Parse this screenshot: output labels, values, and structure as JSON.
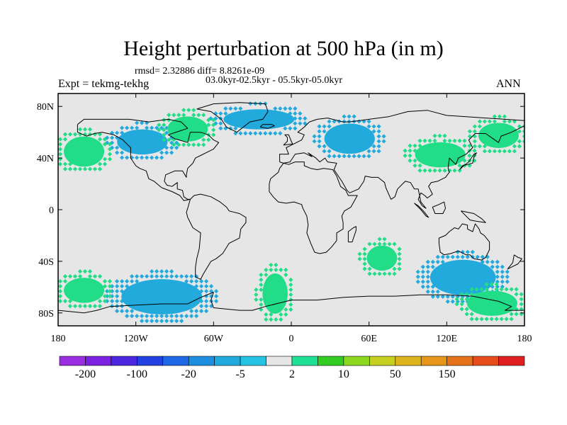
{
  "title": "Height perturbation at 500 hPa (in m)",
  "stats_line": "rmsd= 2.32886 diff= 8.8261e-09",
  "period_line": "03.0kyr-02.5kyr - 05.5kyr-05.0kyr",
  "experiment": "Expt = tekmg-tekhg",
  "season": "ANN",
  "map": {
    "projection": "cylindrical-equidistant",
    "lon_range": [
      -180,
      180
    ],
    "lat_range": [
      -90,
      90
    ],
    "background_color": "#e6e6e6",
    "coastline_color": "#000000",
    "x_ticks": [
      {
        "lon": -180,
        "label": "180"
      },
      {
        "lon": -120,
        "label": "120W"
      },
      {
        "lon": -60,
        "label": "60W"
      },
      {
        "lon": 0,
        "label": "0"
      },
      {
        "lon": 60,
        "label": "60E"
      },
      {
        "lon": 120,
        "label": "120E"
      },
      {
        "lon": 180,
        "label": "180"
      }
    ],
    "y_ticks": [
      {
        "lat": 80,
        "label": "80N"
      },
      {
        "lat": 40,
        "label": "40N"
      },
      {
        "lat": 0,
        "label": "0"
      },
      {
        "lat": -40,
        "label": "40S"
      },
      {
        "lat": -80,
        "label": "80S"
      }
    ],
    "regions": [
      {
        "name": "n-america-negative",
        "lon": [
          -140,
          -90
        ],
        "lat": [
          40,
          65
        ],
        "color": "#22aadd"
      },
      {
        "name": "atlantic-greenland-negative",
        "lon": [
          -60,
          10
        ],
        "lat": [
          60,
          80
        ],
        "color": "#22aadd"
      },
      {
        "name": "eurasia-negative",
        "lon": [
          20,
          70
        ],
        "lat": [
          40,
          70
        ],
        "color": "#22aadd"
      },
      {
        "name": "n-pacific-positive",
        "lon": [
          -180,
          -140
        ],
        "lat": [
          30,
          60
        ],
        "color": "#22dd88"
      },
      {
        "name": "canada-positive",
        "lon": [
          -100,
          -60
        ],
        "lat": [
          50,
          75
        ],
        "color": "#22dd88"
      },
      {
        "name": "asia-positive",
        "lon": [
          90,
          140
        ],
        "lat": [
          30,
          55
        ],
        "color": "#22dd88"
      },
      {
        "name": "ne-asia-positive",
        "lon": [
          140,
          180
        ],
        "lat": [
          45,
          70
        ],
        "color": "#22dd88"
      },
      {
        "name": "s-pacific-negative",
        "lon": [
          -140,
          -60
        ],
        "lat": [
          -85,
          -50
        ],
        "color": "#22aadd"
      },
      {
        "name": "s-indian-negative",
        "lon": [
          100,
          165
        ],
        "lat": [
          -70,
          -35
        ],
        "color": "#22aadd"
      },
      {
        "name": "s-pacific-positive-west",
        "lon": [
          -180,
          -140
        ],
        "lat": [
          -75,
          -50
        ],
        "color": "#22dd88"
      },
      {
        "name": "s-atlantic-positive",
        "lon": [
          -25,
          0
        ],
        "lat": [
          -85,
          -45
        ],
        "color": "#22dd88"
      },
      {
        "name": "s-indian-positive",
        "lon": [
          55,
          85
        ],
        "lat": [
          -50,
          -25
        ],
        "color": "#22dd88"
      },
      {
        "name": "s-ocean-positive-east",
        "lon": [
          130,
          180
        ],
        "lat": [
          -85,
          -60
        ],
        "color": "#22dd88"
      }
    ]
  },
  "colorbar": {
    "colors": [
      "#9b2de0",
      "#7a22e0",
      "#4b28e0",
      "#2241e0",
      "#1f68e6",
      "#1d8ee0",
      "#1faadd",
      "#26c4e4",
      "#e6e6e6",
      "#1fe094",
      "#32cc22",
      "#8cd81e",
      "#c6d020",
      "#dcb41c",
      "#e6961a",
      "#e6731a",
      "#e64d1a",
      "#e02020"
    ],
    "labels": [
      "-200",
      "-100",
      "-20",
      "-5",
      "2",
      "10",
      "50",
      "150"
    ]
  }
}
